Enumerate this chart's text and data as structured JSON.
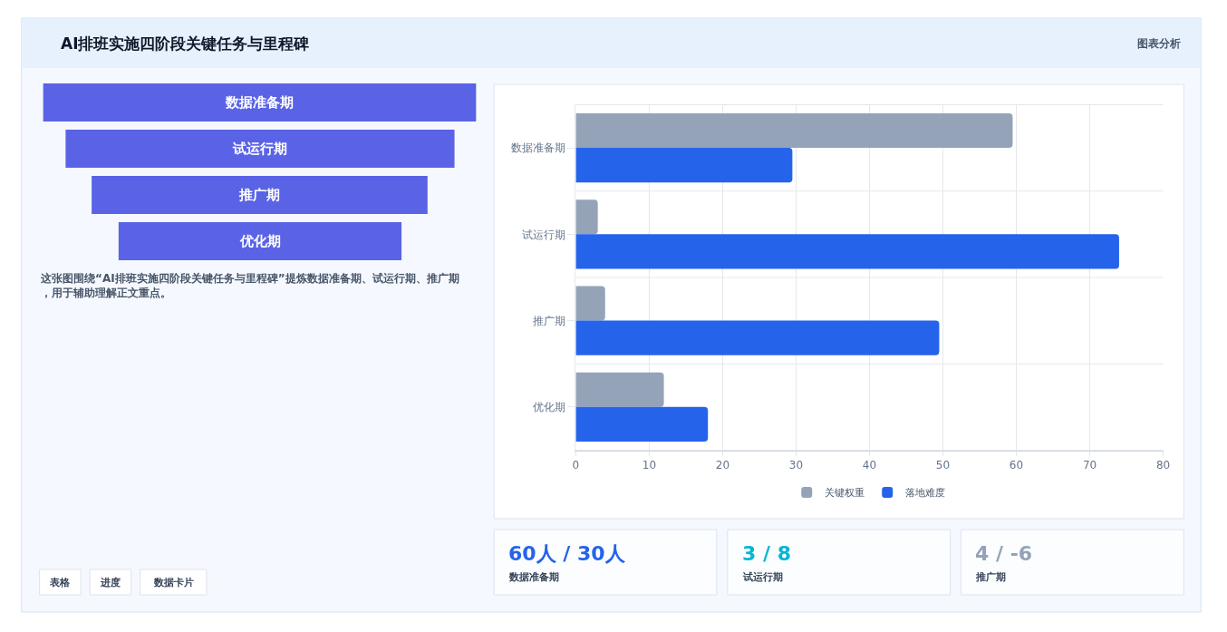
{
  "chart_data": [
    {
      "type": "other",
      "title": "AI排班实施四阶段关键任务与里程碑",
      "subtitle": "图表分析",
      "categories": [
        "数据准备期",
        "试运行期",
        "推广期",
        "优化期"
      ],
      "colors": [
        "#5a63e6",
        "#5a63e6",
        "#5a63e6",
        "#5a63e6"
      ],
      "annotations": [
        "这张图围绕“AI排班实施四阶段关键任务与里程碑”提炼数据准备期、试运行期、推广期，用于辅助理解正文重点。",
        "表格",
        "进度",
        "数据卡片"
      ]
    },
    {
      "type": "bar",
      "orientation": "horizontal",
      "categories": [
        "数据准备期",
        "试运行期",
        "推广期",
        "优化期"
      ],
      "series": [
        {
          "name": "关键权重",
          "color": "#94a3b8",
          "values": [
            59.5,
            3,
            4,
            12
          ]
        },
        {
          "name": "落地难度",
          "color": "#2563eb",
          "values": [
            29.5,
            74,
            49.5,
            18
          ]
        }
      ],
      "xlim": [
        0,
        80
      ],
      "xticks": [
        0,
        10,
        20,
        30,
        40,
        50,
        60,
        70,
        80
      ],
      "grid": true,
      "legend": "bottom"
    },
    {
      "type": "other",
      "categories": [
        "数据准备期",
        "试运行期",
        "推广期"
      ],
      "value_labels": [
        "60人 / 30人",
        "3 / 8",
        "4 / -6"
      ]
    }
  ]
}
